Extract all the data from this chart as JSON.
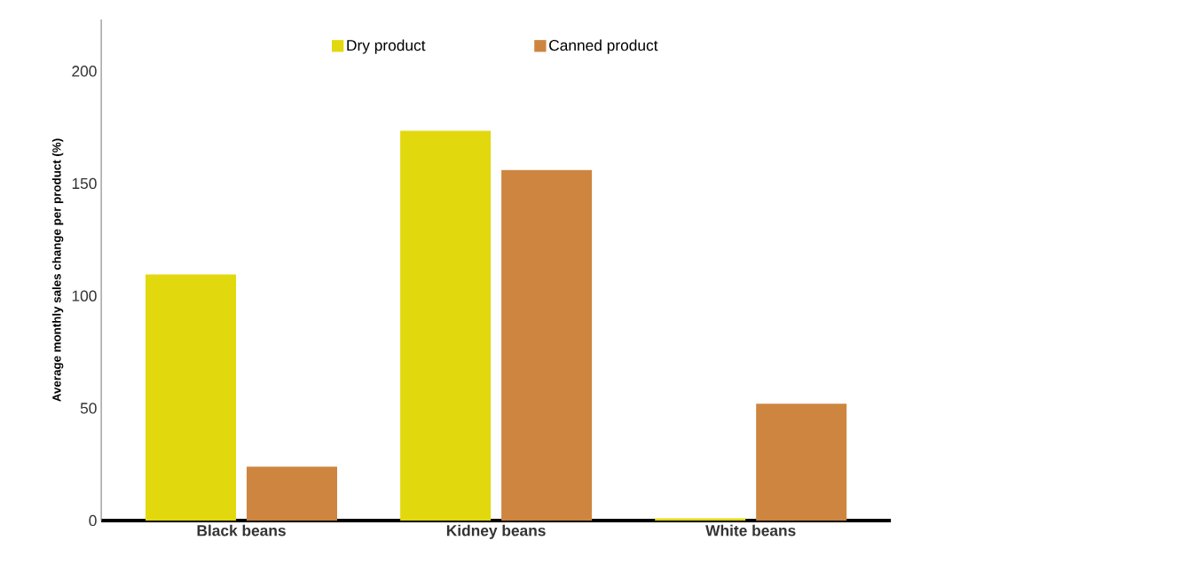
{
  "chart_data": {
    "type": "bar",
    "ylabel": "Average monthly sales change per product (%)",
    "categories": [
      "Black beans",
      "Kidney beans",
      "White beans"
    ],
    "series": [
      {
        "name": "Dry product",
        "color": "#e2d80e",
        "values": [
          109.5,
          173.5,
          1
        ]
      },
      {
        "name": "Canned product",
        "color": "#cd8540",
        "values": [
          24,
          156,
          52
        ]
      }
    ],
    "ylim": [
      0,
      223
    ],
    "yticks": [
      0,
      50,
      100,
      150,
      200
    ],
    "grid": false,
    "legend": "top"
  }
}
